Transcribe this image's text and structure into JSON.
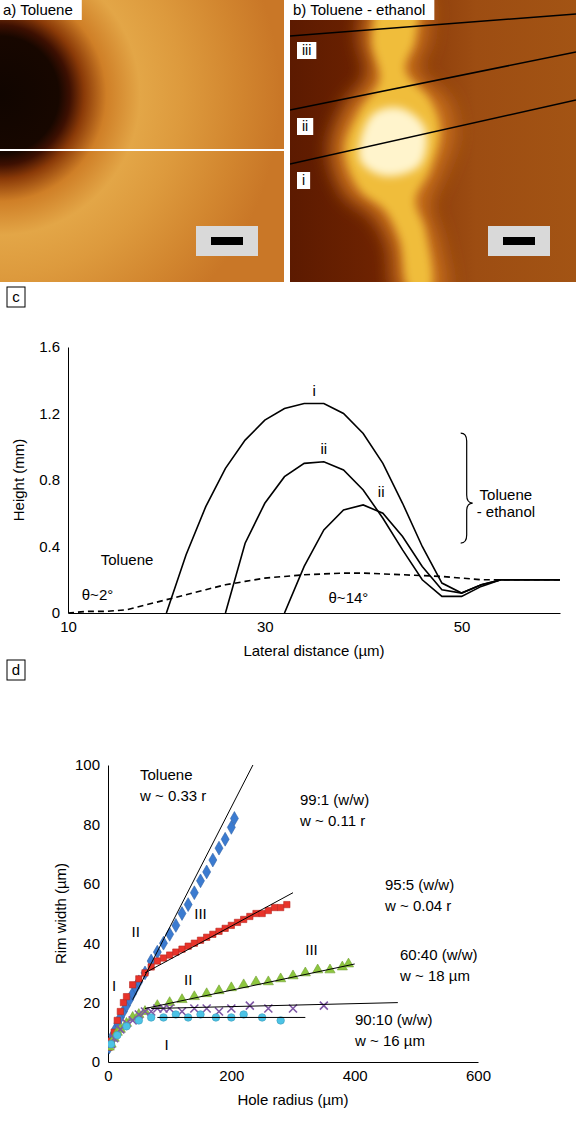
{
  "chart_data": [
    {
      "type": "image",
      "title": "a) Toluene"
    },
    {
      "type": "image",
      "title": "b) Toluene - ethanol",
      "annotations": [
        {
          "text": "iii"
        },
        {
          "text": "ii"
        },
        {
          "text": "i"
        }
      ]
    },
    {
      "type": "line",
      "panel_label": "c",
      "x_label": "Lateral distance (µm)",
      "y_label": "Height (mm)",
      "x": [
        10,
        12,
        14,
        16,
        18,
        20,
        22,
        24,
        26,
        28,
        30,
        32,
        34,
        36,
        38,
        40,
        42,
        44,
        46,
        48,
        50,
        52,
        54,
        56,
        58,
        60
      ],
      "xlim": [
        10,
        60
      ],
      "xticks": [
        10,
        30,
        50
      ],
      "ylim": [
        0,
        1.6
      ],
      "yticks": [
        0,
        0.4,
        0.8,
        1.2,
        1.6
      ],
      "series": [
        {
          "name": "Toluene",
          "color": "#000000",
          "line_style": "dashed",
          "values": [
            0,
            0.01,
            0.01,
            0.02,
            0.05,
            0.08,
            0.11,
            0.14,
            0.17,
            0.19,
            0.21,
            0.22,
            0.23,
            0.235,
            0.24,
            0.24,
            0.235,
            0.23,
            0.225,
            0.22,
            0.21,
            0.2,
            0.2,
            0.2,
            0.2,
            0.2
          ]
        },
        {
          "name": "i",
          "color": "#000000",
          "line_style": "solid",
          "values": [
            null,
            null,
            null,
            null,
            null,
            0,
            0.35,
            0.64,
            0.87,
            1.04,
            1.16,
            1.23,
            1.26,
            1.26,
            1.2,
            1.08,
            0.9,
            0.66,
            0.4,
            0.18,
            0.12,
            0.17,
            0.2,
            0.2,
            0.2,
            0.2
          ]
        },
        {
          "name": "ii",
          "color": "#000000",
          "line_style": "solid",
          "values": [
            null,
            null,
            null,
            null,
            null,
            null,
            null,
            null,
            0,
            0.42,
            0.66,
            0.82,
            0.9,
            0.91,
            0.86,
            0.74,
            0.57,
            0.38,
            0.2,
            0.1,
            0.1,
            0.16,
            0.2,
            0.2,
            0.2,
            0.2
          ]
        },
        {
          "name": "ii",
          "color": "#000000",
          "line_style": "solid",
          "values": [
            null,
            null,
            null,
            null,
            null,
            null,
            null,
            null,
            null,
            null,
            null,
            0,
            0.28,
            0.5,
            0.62,
            0.65,
            0.6,
            0.46,
            0.28,
            0.14,
            0.12,
            0.17,
            0.2,
            0.2,
            0.2,
            0.2
          ]
        }
      ],
      "annotations": [
        {
          "text": "θ~2°",
          "x": 13,
          "y": 0.08
        },
        {
          "text": "θ~14°",
          "x": 38.5,
          "y": 0.06
        },
        {
          "text": "Toluene - ethanol",
          "x": 54.5,
          "y": 0.68
        }
      ]
    },
    {
      "type": "scatter",
      "panel_label": "d",
      "x_label": "Hole radius (µm)",
      "y_label": "Rim width (µm)",
      "xlim": [
        0,
        600
      ],
      "xticks": [
        0,
        200,
        400,
        600
      ],
      "ylim": [
        0,
        100
      ],
      "yticks": [
        0,
        20,
        40,
        60,
        80,
        100
      ],
      "series": [
        {
          "name": "Toluene",
          "color": "#3b7bd0",
          "marker": "diamond",
          "x": [
            2,
            5,
            8,
            12,
            16,
            20,
            25,
            30,
            35,
            40,
            45,
            50,
            60,
            70,
            80,
            90,
            100,
            110,
            120,
            130,
            140,
            150,
            160,
            170,
            180,
            190,
            200,
            205
          ],
          "values": [
            5,
            7,
            9,
            11,
            13,
            15,
            17,
            19,
            21,
            23,
            25,
            27,
            30,
            34,
            37,
            40,
            43,
            46,
            50,
            53,
            57,
            61,
            64,
            68,
            72,
            75,
            79,
            82
          ],
          "fit": {
            "label": "w ~ 0.33 r",
            "x": [
              40,
              235
            ],
            "values": [
              21,
              100
            ]
          }
        },
        {
          "name": "99:1 (w/w)",
          "color": "#e8332a",
          "marker": "square",
          "x": [
            2,
            5,
            10,
            15,
            20,
            25,
            30,
            40,
            50,
            60,
            70,
            80,
            90,
            100,
            110,
            120,
            130,
            140,
            150,
            160,
            170,
            180,
            190,
            200,
            210,
            220,
            230,
            240,
            250,
            260,
            270,
            280,
            290
          ],
          "values": [
            5,
            7,
            10,
            14,
            17,
            20,
            22,
            26,
            28,
            30,
            32,
            34,
            35,
            36,
            37,
            38,
            39,
            40,
            41,
            42,
            43,
            44,
            45,
            46,
            47,
            48,
            49,
            50,
            50,
            51,
            52,
            52,
            53
          ],
          "fit": {
            "label": "w ~ 0.11 r",
            "x": [
              60,
              300
            ],
            "values": [
              30,
              57
            ]
          }
        },
        {
          "name": "95:5 (w/w)",
          "color": "#8dc63f",
          "marker": "triangle",
          "x": [
            2,
            5,
            10,
            15,
            20,
            30,
            40,
            50,
            60,
            80,
            100,
            120,
            140,
            160,
            180,
            200,
            220,
            240,
            260,
            280,
            300,
            320,
            340,
            360,
            380,
            390
          ],
          "values": [
            5,
            6,
            8,
            10,
            11,
            13,
            15,
            16,
            17,
            19,
            20,
            21,
            22,
            23,
            24,
            25,
            26,
            27,
            27,
            28,
            29,
            30,
            31,
            31,
            32,
            33
          ],
          "fit": {
            "label": "w ~ 0.04 r",
            "x": [
              60,
              400
            ],
            "values": [
              18,
              33
            ]
          }
        },
        {
          "name": "60:40 (w/w)",
          "color": "#7e57a5",
          "marker": "x",
          "x": [
            5,
            10,
            20,
            30,
            40,
            50,
            60,
            70,
            80,
            90,
            100,
            120,
            140,
            160,
            180,
            200,
            230,
            260,
            300,
            350
          ],
          "values": [
            6,
            8,
            11,
            13,
            14,
            16,
            17,
            17,
            18,
            18,
            18,
            17,
            18,
            18,
            17,
            18,
            19,
            18,
            18,
            19
          ],
          "fit": {
            "label": "w ~ 18 µm",
            "x": [
              70,
              470
            ],
            "values": [
              18,
              20
            ]
          }
        },
        {
          "name": "90:10 (w/w)",
          "color": "#4cc3e6",
          "marker": "circle",
          "x": [
            5,
            15,
            30,
            50,
            70,
            90,
            110,
            130,
            150,
            175,
            200,
            220,
            250,
            280
          ],
          "values": [
            6,
            9,
            12,
            14,
            15,
            15,
            16,
            15,
            16,
            15,
            15,
            16,
            15,
            14
          ],
          "fit": {
            "label": "w ~ 16 µm",
            "x": [
              80,
              320
            ],
            "values": [
              15,
              15
            ]
          }
        }
      ],
      "annotations": [
        {
          "text": "I",
          "x": 10,
          "y": 24
        },
        {
          "text": "II",
          "x": 45,
          "y": 42
        },
        {
          "text": "III",
          "x": 150,
          "y": 48
        },
        {
          "text": "II",
          "x": 130,
          "y": 26
        },
        {
          "text": "III",
          "x": 330,
          "y": 36
        },
        {
          "text": "I",
          "x": 95,
          "y": 4
        }
      ]
    }
  ]
}
